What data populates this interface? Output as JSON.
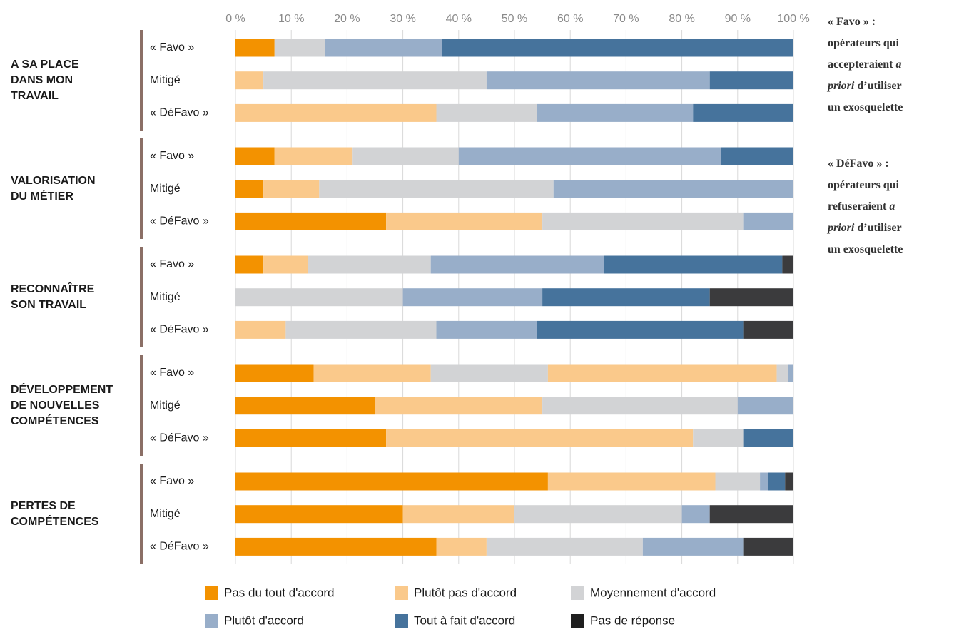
{
  "chart_data": {
    "type": "stacked-bar-horizontal",
    "xlim": [
      0,
      100
    ],
    "xticks": [
      {
        "value": 0,
        "label": "0 %"
      },
      {
        "value": 10,
        "label": "10 %"
      },
      {
        "value": 20,
        "label": "20 %"
      },
      {
        "value": 30,
        "label": "30 %"
      },
      {
        "value": 40,
        "label": "40 %"
      },
      {
        "value": 50,
        "label": "50 %"
      },
      {
        "value": 60,
        "label": "60 %"
      },
      {
        "value": 70,
        "label": "70 %"
      },
      {
        "value": 80,
        "label": "80 %"
      },
      {
        "value": 90,
        "label": "90 %"
      },
      {
        "value": 100,
        "label": "100 %"
      }
    ],
    "grid": true,
    "groups": [
      {
        "label": [
          "A SA PLACE",
          "DANS MON",
          "TRAVAIL"
        ],
        "categories": [
          "« Favo »",
          "Mitigé",
          "« DéFavo »"
        ]
      },
      {
        "label": [
          "VALORISATION",
          "DU MÉTIER"
        ],
        "categories": [
          "« Favo »",
          "Mitigé",
          "« DéFavo »"
        ]
      },
      {
        "label": [
          "RECONNAÎTRE",
          "SON TRAVAIL"
        ],
        "categories": [
          "« Favo »",
          "Mitigé",
          "« DéFavo »"
        ]
      },
      {
        "label": [
          "DÉVELOPPEMENT",
          "DE NOUVELLES",
          "COMPÉTENCES"
        ],
        "categories": [
          "« Favo »",
          "Mitigé",
          "« DéFavo »"
        ]
      },
      {
        "label": [
          "PERTES DE",
          "COMPÉTENCES"
        ],
        "categories": [
          "« Favo »",
          "Mitigé",
          "« DéFavo »"
        ]
      }
    ],
    "series": [
      {
        "name": "Pas du tout d'accord",
        "color": "#f39200",
        "values": [
          7,
          0,
          0,
          7,
          5,
          27,
          5,
          0,
          0,
          14,
          25,
          27,
          56,
          30,
          36
        ]
      },
      {
        "name": "Plutôt pas d'accord",
        "color": "#fac98b",
        "values": [
          0,
          5,
          36,
          14,
          10,
          28,
          8,
          0,
          9,
          21,
          30,
          55,
          30,
          20,
          9
        ]
      },
      {
        "name": "Moyennement d'accord",
        "color": "#d2d3d5",
        "values": [
          9,
          40,
          18,
          19,
          42,
          36,
          22,
          30,
          27,
          21,
          35,
          9,
          8,
          30,
          28
        ]
      },
      {
        "name": "Plutôt d'accord",
        "color": "#98aec9",
        "values": [
          21,
          40,
          28,
          47,
          43,
          9,
          31,
          25,
          18,
          41,
          10,
          0,
          1.5,
          5,
          18
        ]
      },
      {
        "name": "Tout à fait d'accord",
        "color": "#46739c",
        "values": [
          63,
          15,
          18,
          13,
          0,
          0,
          32,
          30,
          37,
          2,
          0,
          9,
          3,
          0,
          0
        ]
      },
      {
        "name": "Pas de réponse",
        "color": "#3b3b3d",
        "values": [
          0,
          0,
          0,
          0,
          0,
          0,
          2,
          15,
          9,
          1,
          0,
          0,
          1.5,
          15,
          9
        ]
      }
    ],
    "color_overrides": [
      {
        "series": 3,
        "index": 9,
        "color": "#fac98b"
      },
      {
        "series": 4,
        "index": 9,
        "color": "#d2d3d5"
      },
      {
        "series": 5,
        "index": 9,
        "color": "#98aec9"
      }
    ],
    "notes": [
      {
        "lines": [
          [
            "« Favo » :"
          ],
          [
            "opérateurs qui"
          ],
          [
            "accepteraient ",
            {
              "italic": "a"
            }
          ],
          [
            {
              "italic": "priori"
            },
            " d’utiliser"
          ],
          [
            "un exosquelette"
          ]
        ]
      },
      {
        "lines": [
          [
            "« DéFavo » :"
          ],
          [
            "opérateurs qui"
          ],
          [
            "refuseraient ",
            {
              "italic": "a"
            }
          ],
          [
            {
              "italic": "priori"
            },
            " d’utiliser"
          ],
          [
            "un exosquelette"
          ]
        ]
      }
    ]
  }
}
